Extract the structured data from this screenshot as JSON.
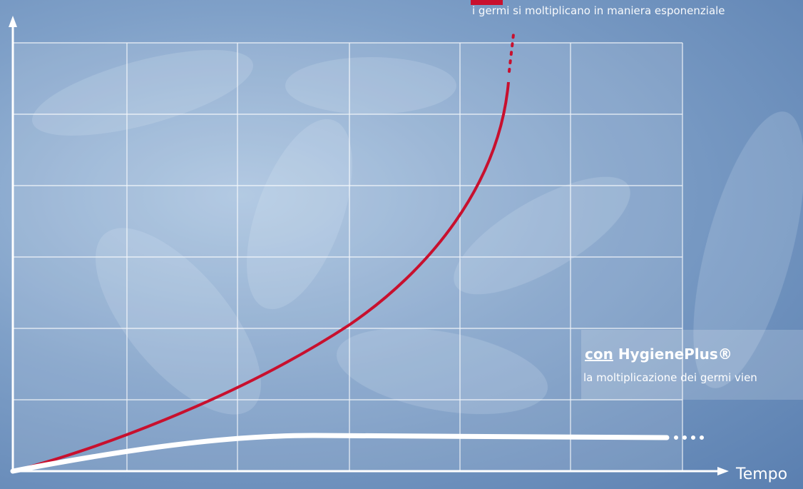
{
  "labels": {
    "top_note": "i germi si moltiplicano in maniera esponenziale",
    "with_title_prefix": "con",
    "with_title": "HygienePlus®",
    "with_note": "la moltiplicazione dei germi vien",
    "x_axis": "Tempo"
  }
}
